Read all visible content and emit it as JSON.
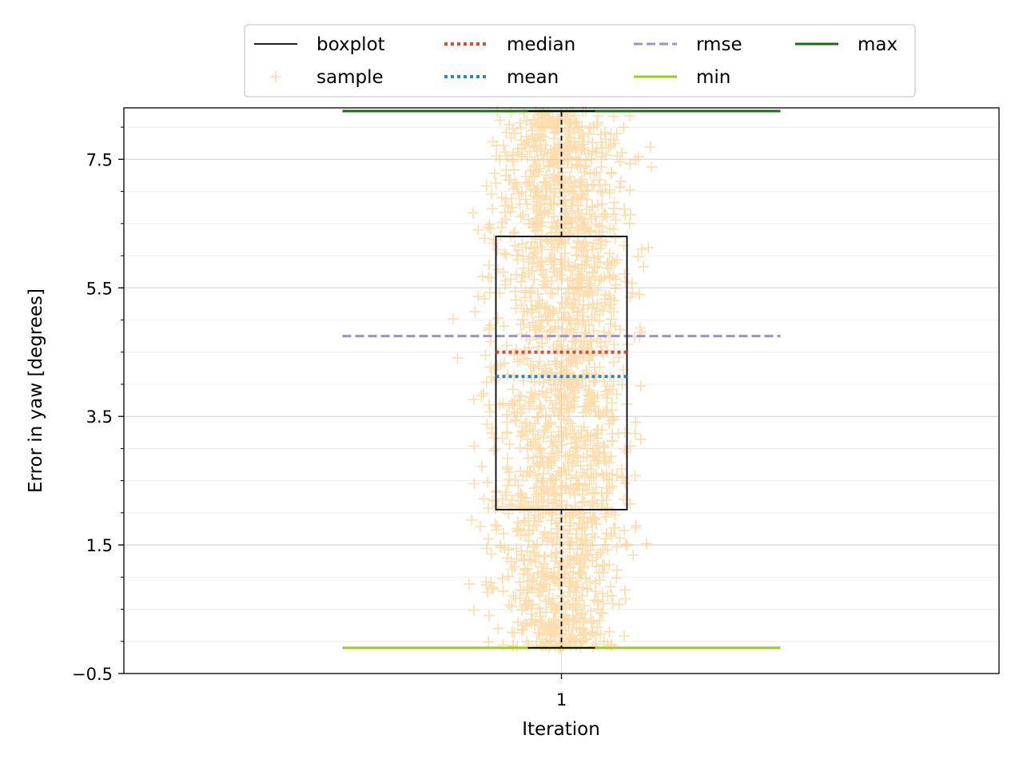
{
  "chart_data": {
    "type": "boxplot",
    "xlabel": "Iteration",
    "ylabel": "Error in yaw [degrees]",
    "categories": [
      "1"
    ],
    "ylim": [
      -0.5,
      8.3
    ],
    "yticks": [
      -0.5,
      1.5,
      3.5,
      5.5,
      7.5
    ],
    "ytick_labels": [
      "−0.5",
      "1.5",
      "3.5",
      "5.5",
      "7.5"
    ],
    "grid": "horizontal",
    "legend": {
      "placement": "top-center, outside",
      "entries": [
        {
          "key": "boxplot",
          "label": "boxplot",
          "color": "#000000",
          "style": "solid"
        },
        {
          "key": "sample",
          "label": "sample",
          "color": "#fdc36b",
          "style": "plus"
        },
        {
          "key": "median",
          "label": "median",
          "color": "#e0472b",
          "style": "dotted"
        },
        {
          "key": "mean",
          "label": "mean",
          "color": "#2e86c1",
          "style": "dotted"
        },
        {
          "key": "rmse",
          "label": "rmse",
          "color": "#9b8fd6",
          "style": "dashed"
        },
        {
          "key": "min",
          "label": "min",
          "color": "#9acd17",
          "style": "solid"
        },
        {
          "key": "max",
          "label": "max",
          "color": "#1a6b12",
          "style": "solid"
        }
      ]
    },
    "box": {
      "whisker_low": -0.1,
      "q1": 2.05,
      "median": 4.5,
      "q3": 6.3,
      "whisker_high": 8.25
    },
    "mean": 4.12,
    "rmse": 4.75,
    "min": -0.1,
    "max": 8.25,
    "samples": {
      "count": 2000,
      "jitter": "random horizontal spread around x=1",
      "range": [
        -0.1,
        8.25
      ]
    },
    "colors": {
      "sample": "#fdc36b",
      "median": "#e0472b",
      "mean": "#2e86c1",
      "rmse": "#9b8fd6",
      "min": "#9acd17",
      "max": "#1a6b12"
    }
  }
}
